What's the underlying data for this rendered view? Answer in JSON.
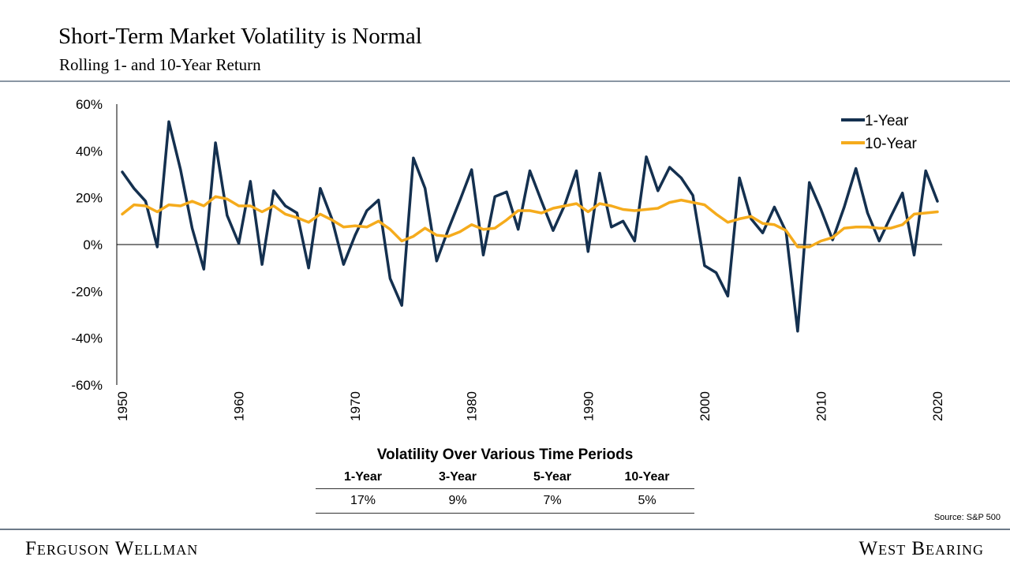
{
  "header": {
    "title": "Short-Term Market Volatility is Normal",
    "subtitle": "Rolling 1- and 10-Year Return"
  },
  "chart_data": {
    "type": "line",
    "x": [
      1950,
      1951,
      1952,
      1953,
      1954,
      1955,
      1956,
      1957,
      1958,
      1959,
      1960,
      1961,
      1962,
      1963,
      1964,
      1965,
      1966,
      1967,
      1968,
      1969,
      1970,
      1971,
      1972,
      1973,
      1974,
      1975,
      1976,
      1977,
      1978,
      1979,
      1980,
      1981,
      1982,
      1983,
      1984,
      1985,
      1986,
      1987,
      1988,
      1989,
      1990,
      1991,
      1992,
      1993,
      1994,
      1995,
      1996,
      1997,
      1998,
      1999,
      2000,
      2001,
      2002,
      2003,
      2004,
      2005,
      2006,
      2007,
      2008,
      2009,
      2010,
      2011,
      2012,
      2013,
      2014,
      2015,
      2016,
      2017,
      2018,
      2019,
      2020
    ],
    "series": [
      {
        "name": "1-Year",
        "color": "#14304f",
        "values": [
          31.0,
          24.0,
          18.5,
          -1.0,
          52.5,
          32.0,
          7.0,
          -10.5,
          43.5,
          12.5,
          0.5,
          27.0,
          -8.5,
          23.0,
          16.5,
          13.5,
          -10.0,
          24.0,
          11.0,
          -8.5,
          4.0,
          14.5,
          19.0,
          -14.5,
          -26.0,
          37.0,
          24.0,
          -7.0,
          6.5,
          19.0,
          32.0,
          -4.5,
          20.5,
          22.5,
          6.5,
          31.5,
          18.5,
          6.0,
          17.0,
          31.5,
          -3.0,
          30.5,
          7.5,
          10.0,
          1.5,
          37.5,
          23.0,
          33.0,
          28.5,
          21.0,
          -9.0,
          -12.0,
          -22.0,
          28.5,
          11.0,
          5.0,
          16.0,
          5.5,
          -37.0,
          26.5,
          15.0,
          2.0,
          16.0,
          32.5,
          13.5,
          1.5,
          12.0,
          22.0,
          -4.5,
          31.5,
          18.5
        ]
      },
      {
        "name": "10-Year",
        "color": "#f5ab1c",
        "values": [
          13.0,
          17.0,
          16.5,
          14.0,
          17.0,
          16.5,
          18.5,
          16.5,
          20.5,
          19.5,
          16.5,
          16.5,
          14.0,
          16.5,
          13.0,
          11.5,
          9.5,
          13.0,
          10.5,
          7.5,
          8.0,
          7.5,
          10.0,
          6.5,
          1.5,
          3.5,
          7.0,
          4.0,
          3.5,
          5.5,
          8.5,
          6.5,
          7.0,
          10.5,
          14.5,
          14.5,
          13.5,
          15.5,
          16.5,
          17.5,
          14.0,
          17.5,
          16.5,
          15.0,
          14.5,
          15.0,
          15.5,
          18.0,
          19.0,
          18.0,
          17.0,
          13.0,
          9.5,
          11.0,
          12.0,
          9.0,
          8.5,
          6.0,
          -1.0,
          -1.0,
          1.5,
          3.0,
          7.0,
          7.5,
          7.5,
          7.0,
          7.0,
          8.5,
          13.0,
          13.5,
          14.0
        ]
      }
    ],
    "ylim": [
      -60,
      60
    ],
    "y_ticks": [
      "60%",
      "40%",
      "20%",
      "0%",
      "-20%",
      "-40%",
      "-60%"
    ],
    "x_ticks": [
      "1950",
      "1960",
      "1970",
      "1980",
      "1990",
      "2000",
      "2010",
      "2020"
    ],
    "legend_position": "top-right",
    "grid": false
  },
  "volatility": {
    "title": "Volatility Over Various Time Periods",
    "headers": [
      "1-Year",
      "3-Year",
      "5-Year",
      "10-Year"
    ],
    "values": [
      "17%",
      "9%",
      "7%",
      "5%"
    ]
  },
  "footer": {
    "source": "Source: S&P 500",
    "brand_left": "Ferguson Wellman",
    "brand_right": "West Bearing"
  }
}
